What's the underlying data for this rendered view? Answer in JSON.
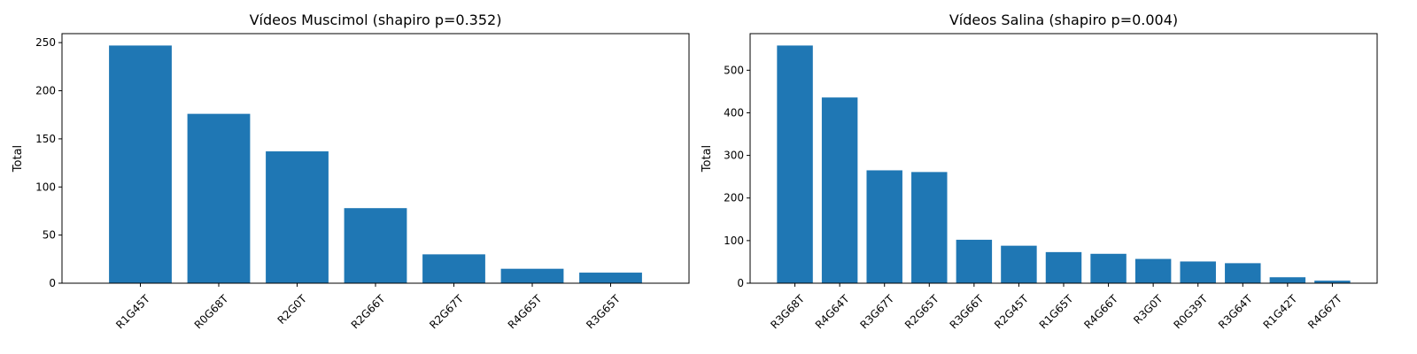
{
  "chart_data": [
    {
      "type": "bar",
      "title": "Vídeos Muscimol (shapiro p=0.352)",
      "xlabel": "",
      "ylabel": "Total",
      "categories": [
        "R1G45T",
        "R0G68T",
        "R2G0T",
        "R2G66T",
        "R2G67T",
        "R4G65T",
        "R3G65T"
      ],
      "values": [
        247,
        176,
        137,
        78,
        30,
        15,
        11
      ],
      "ylim": [
        0,
        259.35
      ],
      "yticks": [
        0,
        50,
        100,
        150,
        200,
        250
      ],
      "color": "#1f77b4",
      "grid": false
    },
    {
      "type": "bar",
      "title": "Vídeos Salina (shapiro p=0.004)",
      "xlabel": "",
      "ylabel": "Total",
      "categories": [
        "R3G68T",
        "R4G64T",
        "R3G67T",
        "R2G65T",
        "R3G66T",
        "R2G45T",
        "R1G65T",
        "R4G66T",
        "R3G0T",
        "R0G39T",
        "R3G64T",
        "R1G42T",
        "R4G67T"
      ],
      "values": [
        558,
        436,
        265,
        261,
        102,
        88,
        73,
        69,
        57,
        51,
        47,
        14,
        6
      ],
      "ylim": [
        0,
        585.9
      ],
      "yticks": [
        0,
        100,
        200,
        300,
        400,
        500
      ],
      "color": "#1f77b4",
      "grid": false
    }
  ]
}
